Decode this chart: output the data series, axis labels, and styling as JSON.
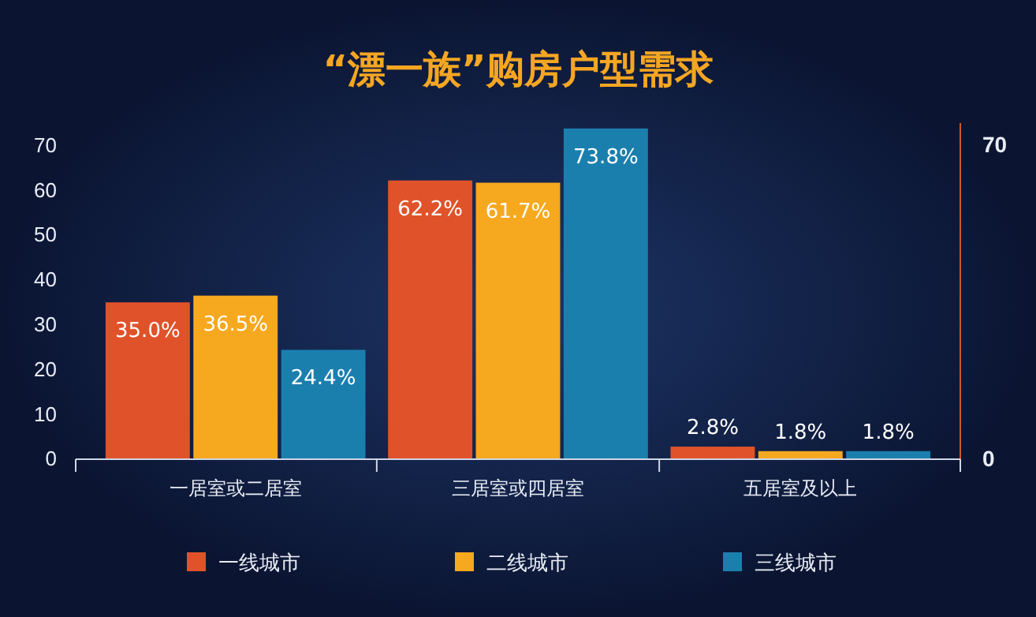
{
  "chart_data": {
    "type": "bar",
    "title": "“漂一族”购房户型需求",
    "categories": [
      "一居室或二居室",
      "三居室或四居室",
      "五居室及以上"
    ],
    "series": [
      {
        "name": "一线城市",
        "color": "#e0532a",
        "values": [
          35.0,
          62.2,
          2.8
        ],
        "value_labels": [
          "35.0%",
          "62.2%",
          "2.8%"
        ]
      },
      {
        "name": "二线城市",
        "color": "#f6a81e",
        "values": [
          36.5,
          61.7,
          1.8
        ],
        "value_labels": [
          "36.5%",
          "61.7%",
          "1.8%"
        ]
      },
      {
        "name": "三线城市",
        "color": "#1b7fae",
        "values": [
          24.4,
          73.8,
          1.8
        ],
        "value_labels": [
          "24.4%",
          "73.8%",
          "1.8%"
        ]
      }
    ],
    "ylim": [
      0,
      75
    ],
    "yticks": [
      0,
      10,
      20,
      30,
      40,
      50,
      60,
      70
    ],
    "y2lim": [
      0,
      75
    ],
    "y2ticks": [
      0,
      70
    ],
    "grid": false,
    "legend": "bottom"
  }
}
